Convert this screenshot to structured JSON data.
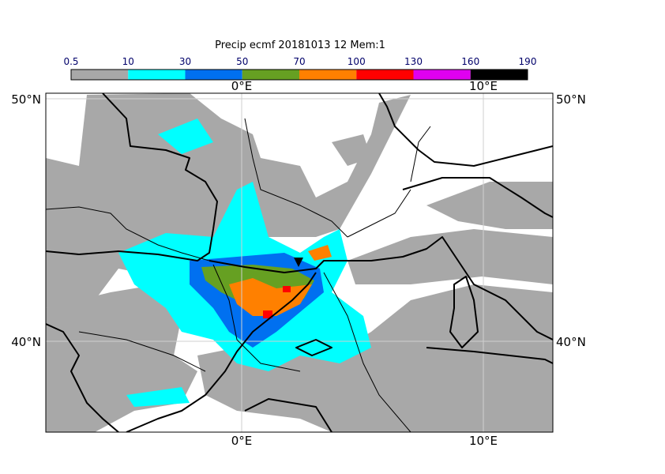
{
  "title": "Precip ecmf 20181013 12 Mem:1",
  "legend": {
    "bounds": [
      "0.5",
      "10",
      "30",
      "50",
      "70",
      "100",
      "130",
      "160",
      "190"
    ],
    "colors": [
      "#a8a8a8",
      "#00ffff",
      "#0070f0",
      "#66a022",
      "#ff8000",
      "#ff0000",
      "#e000f0",
      "#000000"
    ]
  },
  "axes": {
    "lon_labels": [
      "0°E",
      "10°E"
    ],
    "lat_labels": [
      "50°N",
      "40°N"
    ]
  }
}
